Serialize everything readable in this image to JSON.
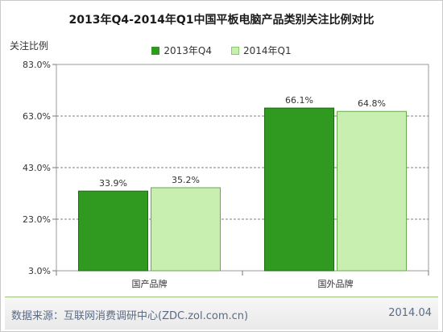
{
  "chart_data": {
    "type": "bar",
    "title": "2013年Q4-2014年Q1中国平板电脑产品类别关注比例对比",
    "ylabel": "关注比例",
    "xlabel": "",
    "categories": [
      "国产品牌",
      "国外品牌"
    ],
    "series": [
      {
        "name": "2013年Q4",
        "values": [
          33.9,
          66.1
        ],
        "color": "#2f9a1f"
      },
      {
        "name": "2014年Q1",
        "values": [
          35.2,
          64.8
        ],
        "color": "#c9efb0"
      }
    ],
    "value_labels": [
      [
        "33.9%",
        "66.1%"
      ],
      [
        "35.2%",
        "64.8%"
      ]
    ],
    "ylim": [
      3.0,
      83.0
    ],
    "yticks": [
      "3.0%",
      "23.0%",
      "43.0%",
      "63.0%",
      "83.0%"
    ],
    "grid": "horizontal dashed",
    "legend_position": "top"
  },
  "footer": {
    "source": "数据来源：互联网消费调研中心(ZDC.zol.com.cn)",
    "date": "2014.04"
  }
}
